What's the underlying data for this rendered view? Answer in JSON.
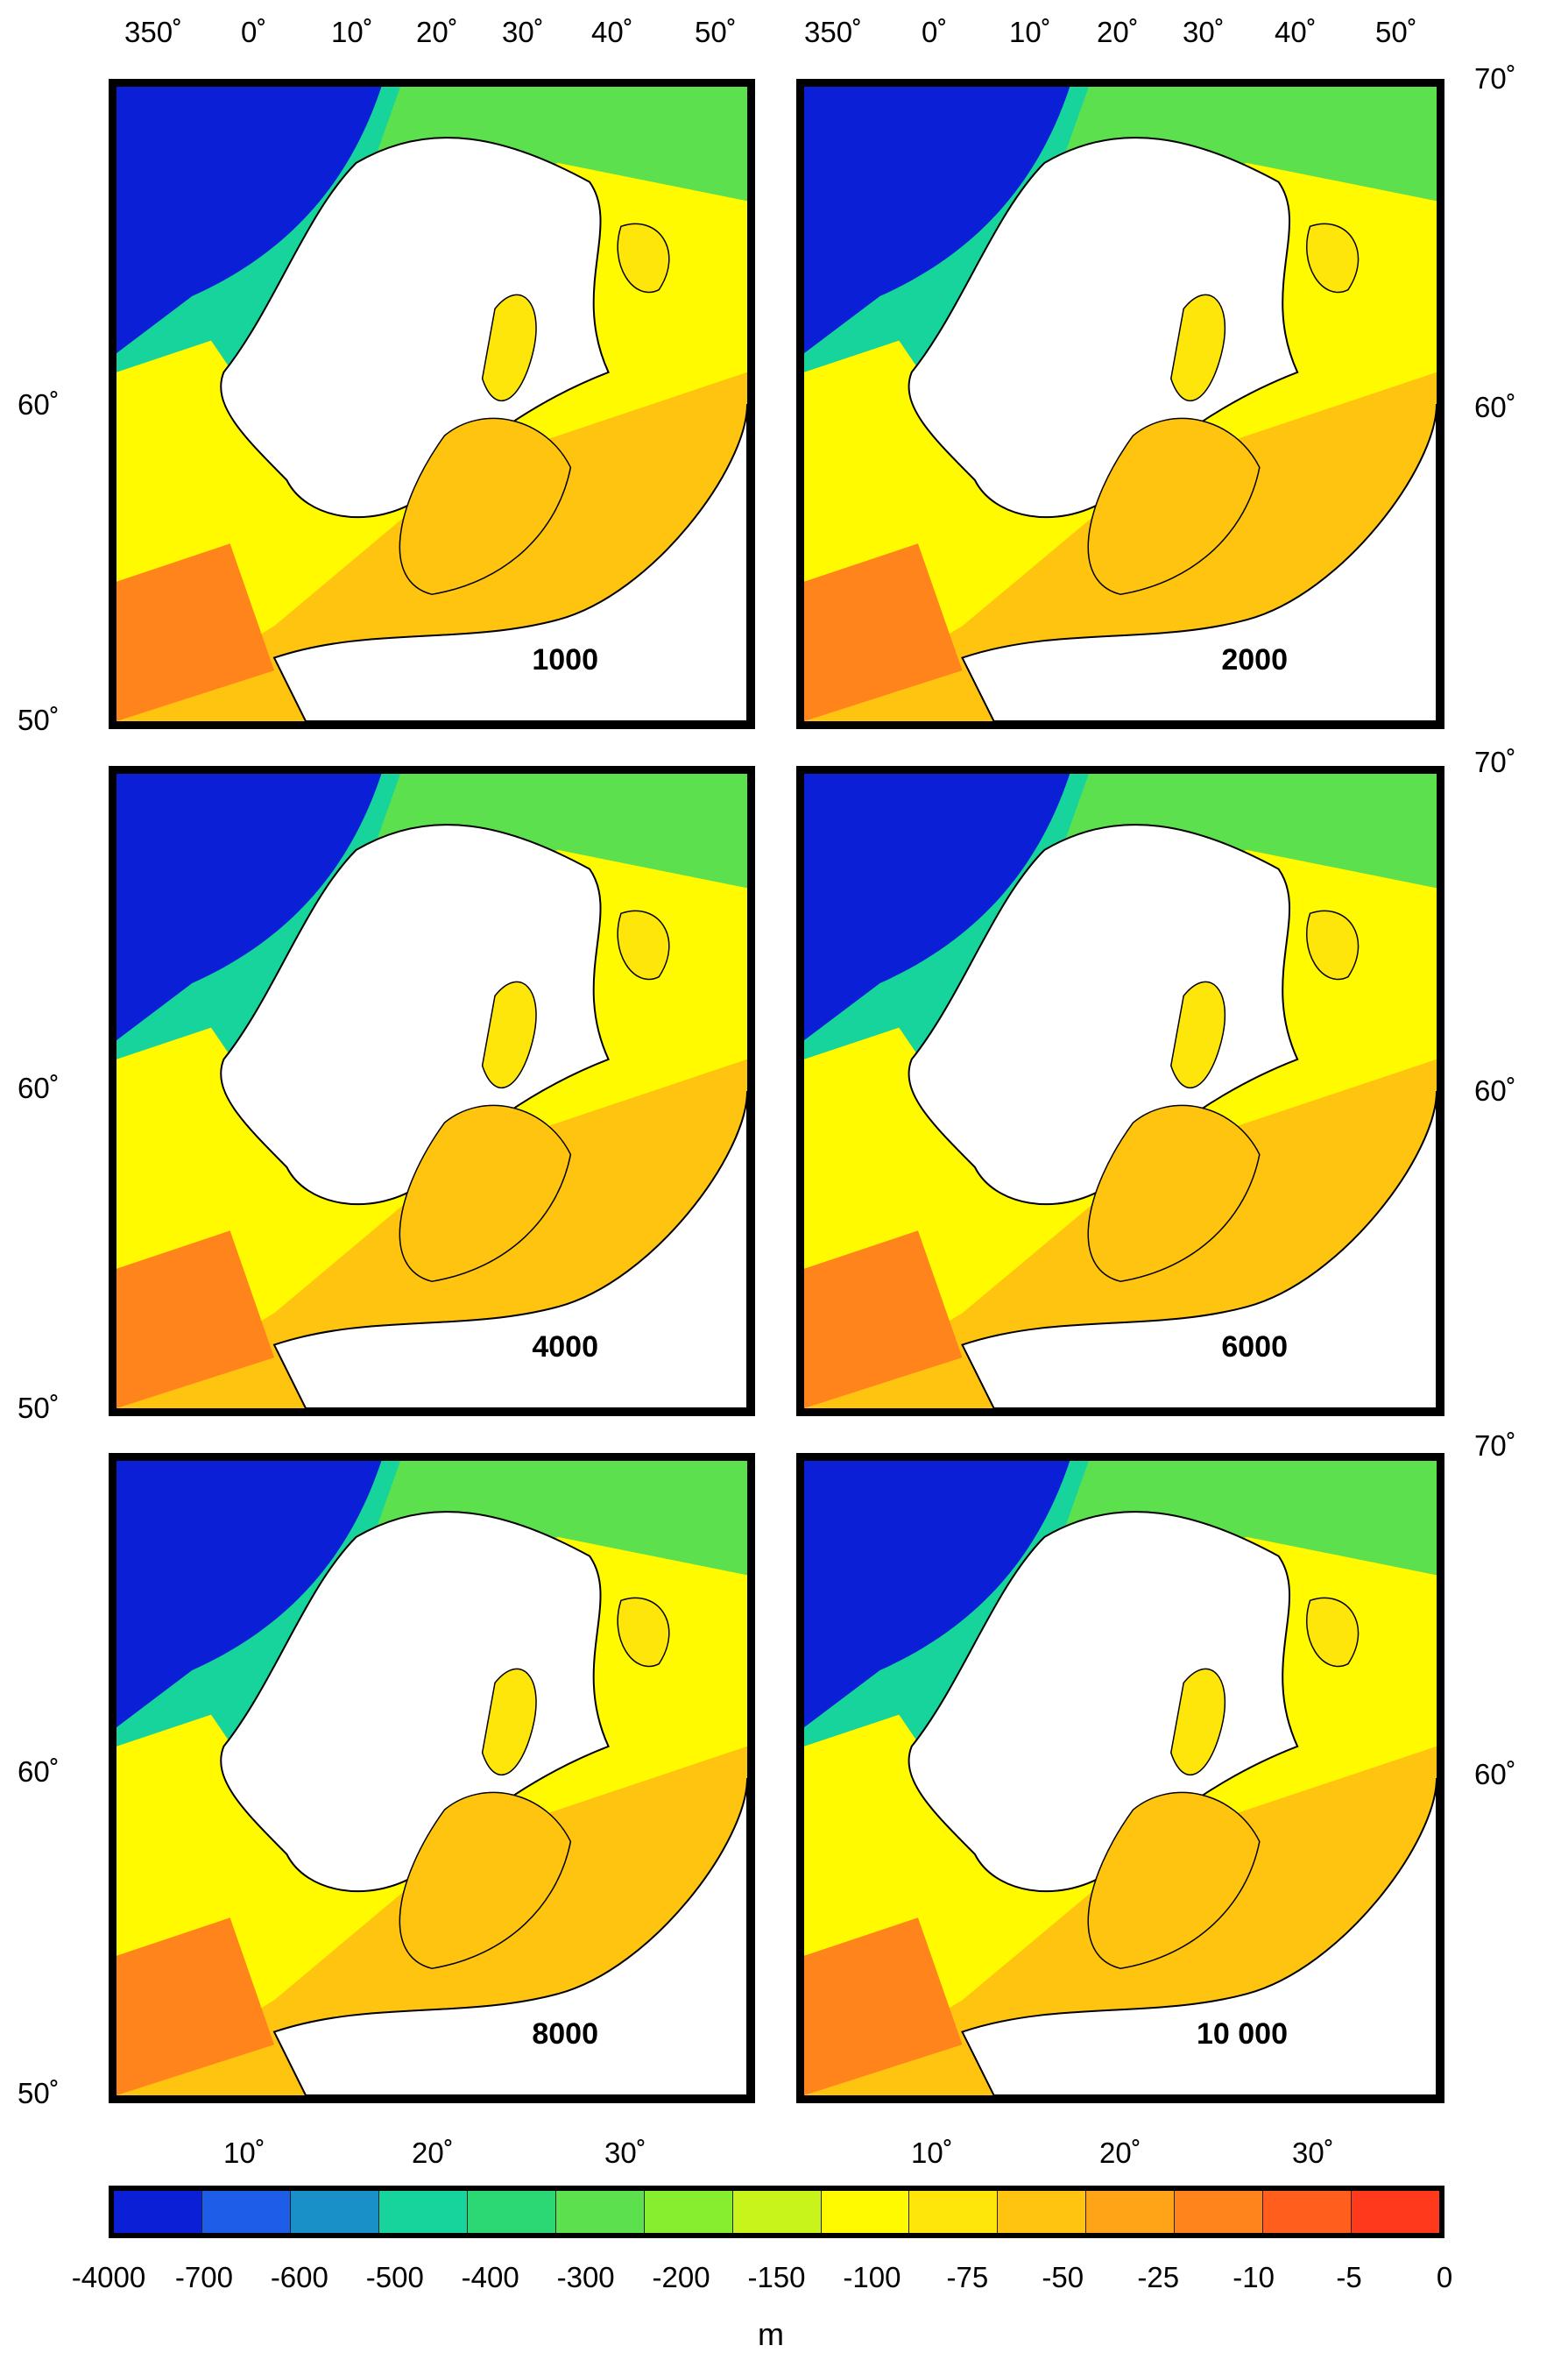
{
  "top_lon_labels": {
    "left": [
      "350˚",
      "0˚",
      "10˚",
      "20˚",
      "30˚",
      "40˚",
      "50˚"
    ],
    "right": [
      "350˚",
      "0˚",
      "10˚",
      "20˚",
      "30˚",
      "40˚",
      "50˚"
    ]
  },
  "left_lat_labels": [
    "60˚",
    "50˚",
    "60˚",
    "50˚",
    "60˚",
    "50˚"
  ],
  "right_lat_labels": [
    "70˚",
    "60˚",
    "70˚",
    "60˚",
    "70˚",
    "60˚"
  ],
  "bottom_lon_labels": {
    "left": [
      "10˚",
      "20˚",
      "30˚"
    ],
    "right": [
      "10˚",
      "20˚",
      "30˚"
    ]
  },
  "panels": [
    {
      "label": "1000"
    },
    {
      "label": "2000"
    },
    {
      "label": "4000"
    },
    {
      "label": "6000"
    },
    {
      "label": "8000"
    },
    {
      "label": "10 000"
    }
  ],
  "colorbar": {
    "colors": [
      "#0a1fd6",
      "#1e5de8",
      "#1a90c8",
      "#17d49c",
      "#2bd873",
      "#5ce04d",
      "#86ee2e",
      "#c8f41c",
      "#fffa00",
      "#ffe60a",
      "#ffc40f",
      "#ffa416",
      "#ff841b",
      "#ff5e1c",
      "#ff3a1c"
    ],
    "ticks": [
      "-4000",
      "-700",
      "-600",
      "-500",
      "-400",
      "-300",
      "-200",
      "-150",
      "-100",
      "-75",
      "-50",
      "-25",
      "-10",
      "-5",
      "0"
    ],
    "unit": "m"
  }
}
